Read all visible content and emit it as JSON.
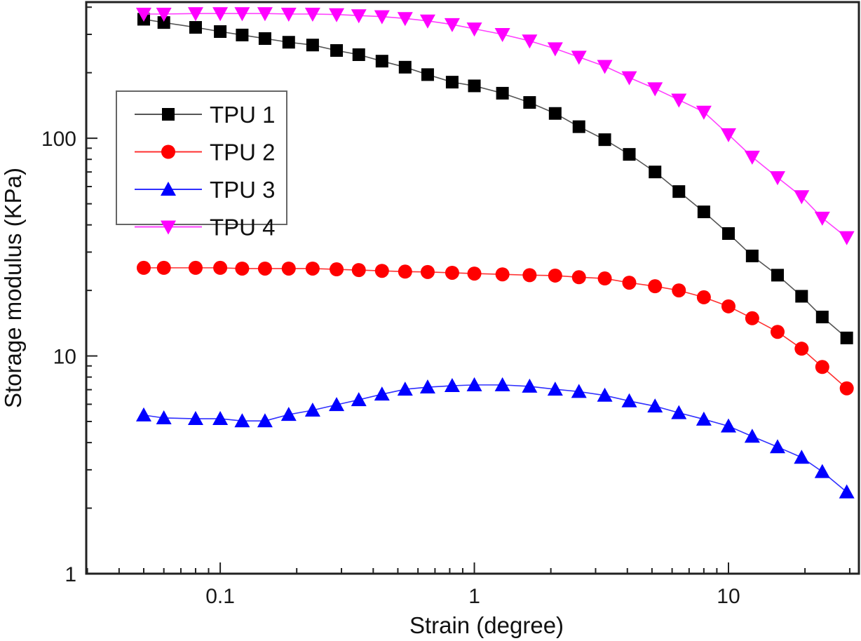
{
  "chart_data": {
    "type": "line",
    "title": "",
    "xlabel": "Strain (degree)",
    "ylabel": "Storage modulus (KPa)",
    "xscale": "log",
    "yscale": "log",
    "xlim": [
      0.0297,
      32.6
    ],
    "ylim": [
      1,
      422
    ],
    "x_ticks": [
      {
        "value": 0.1,
        "label": "0.1"
      },
      {
        "value": 1,
        "label": "1"
      },
      {
        "value": 10,
        "label": "10"
      }
    ],
    "y_ticks": [
      {
        "value": 1,
        "label": "1"
      },
      {
        "value": 10,
        "label": "10"
      },
      {
        "value": 100,
        "label": "100"
      }
    ],
    "grid": false,
    "legend_position": "upper-left",
    "x": [
      0.05,
      0.06,
      0.08,
      0.1,
      0.122,
      0.15,
      0.186,
      0.231,
      0.287,
      0.351,
      0.433,
      0.534,
      0.655,
      0.818,
      1.0,
      1.29,
      1.65,
      2.08,
      2.58,
      3.26,
      4.07,
      5.14,
      6.38,
      8.0,
      10.0,
      12.4,
      15.6,
      19.4,
      23.4,
      29.2
    ],
    "series": [
      {
        "name": "TPU 1",
        "color": "#000000",
        "line_color": "#555555",
        "marker": "square",
        "values": [
          352,
          340,
          323,
          309,
          298,
          287,
          276,
          268,
          253,
          242,
          226,
          212,
          196,
          181,
          174,
          161,
          146,
          130,
          113,
          98.5,
          84.3,
          70.0,
          56.9,
          45.9,
          36.5,
          28.8,
          23.5,
          18.8,
          15.1,
          12.1
        ]
      },
      {
        "name": "TPU 2",
        "color": "#ff0000",
        "line_color": "#ff3030",
        "marker": "circle",
        "values": [
          25.4,
          25.4,
          25.4,
          25.4,
          25.2,
          25.2,
          25.2,
          25.2,
          25.0,
          24.8,
          24.6,
          24.4,
          24.3,
          24.1,
          23.9,
          23.7,
          23.5,
          23.4,
          23.0,
          22.7,
          21.7,
          20.9,
          20.0,
          18.6,
          16.9,
          14.9,
          12.9,
          10.8,
          8.9,
          7.1
        ]
      },
      {
        "name": "TPU 3",
        "color": "#0000ff",
        "line_color": "#3030ff",
        "marker": "triangle-up",
        "values": [
          5.35,
          5.19,
          5.15,
          5.15,
          5.03,
          5.03,
          5.38,
          5.63,
          5.97,
          6.29,
          6.67,
          7.03,
          7.19,
          7.3,
          7.36,
          7.36,
          7.25,
          7.03,
          6.86,
          6.59,
          6.21,
          5.88,
          5.48,
          5.12,
          4.76,
          4.27,
          3.82,
          3.42,
          2.94,
          2.37
        ]
      },
      {
        "name": "TPU 4",
        "color": "#ff00ff",
        "line_color": "#ff40ff",
        "marker": "triangle-down",
        "values": [
          372,
          372,
          374,
          374,
          374,
          374,
          372,
          372,
          370,
          366,
          362,
          355,
          346,
          333,
          318,
          300,
          280,
          258,
          236,
          214,
          190,
          169,
          150,
          132,
          104,
          82,
          66,
          54,
          43,
          35
        ]
      }
    ]
  }
}
